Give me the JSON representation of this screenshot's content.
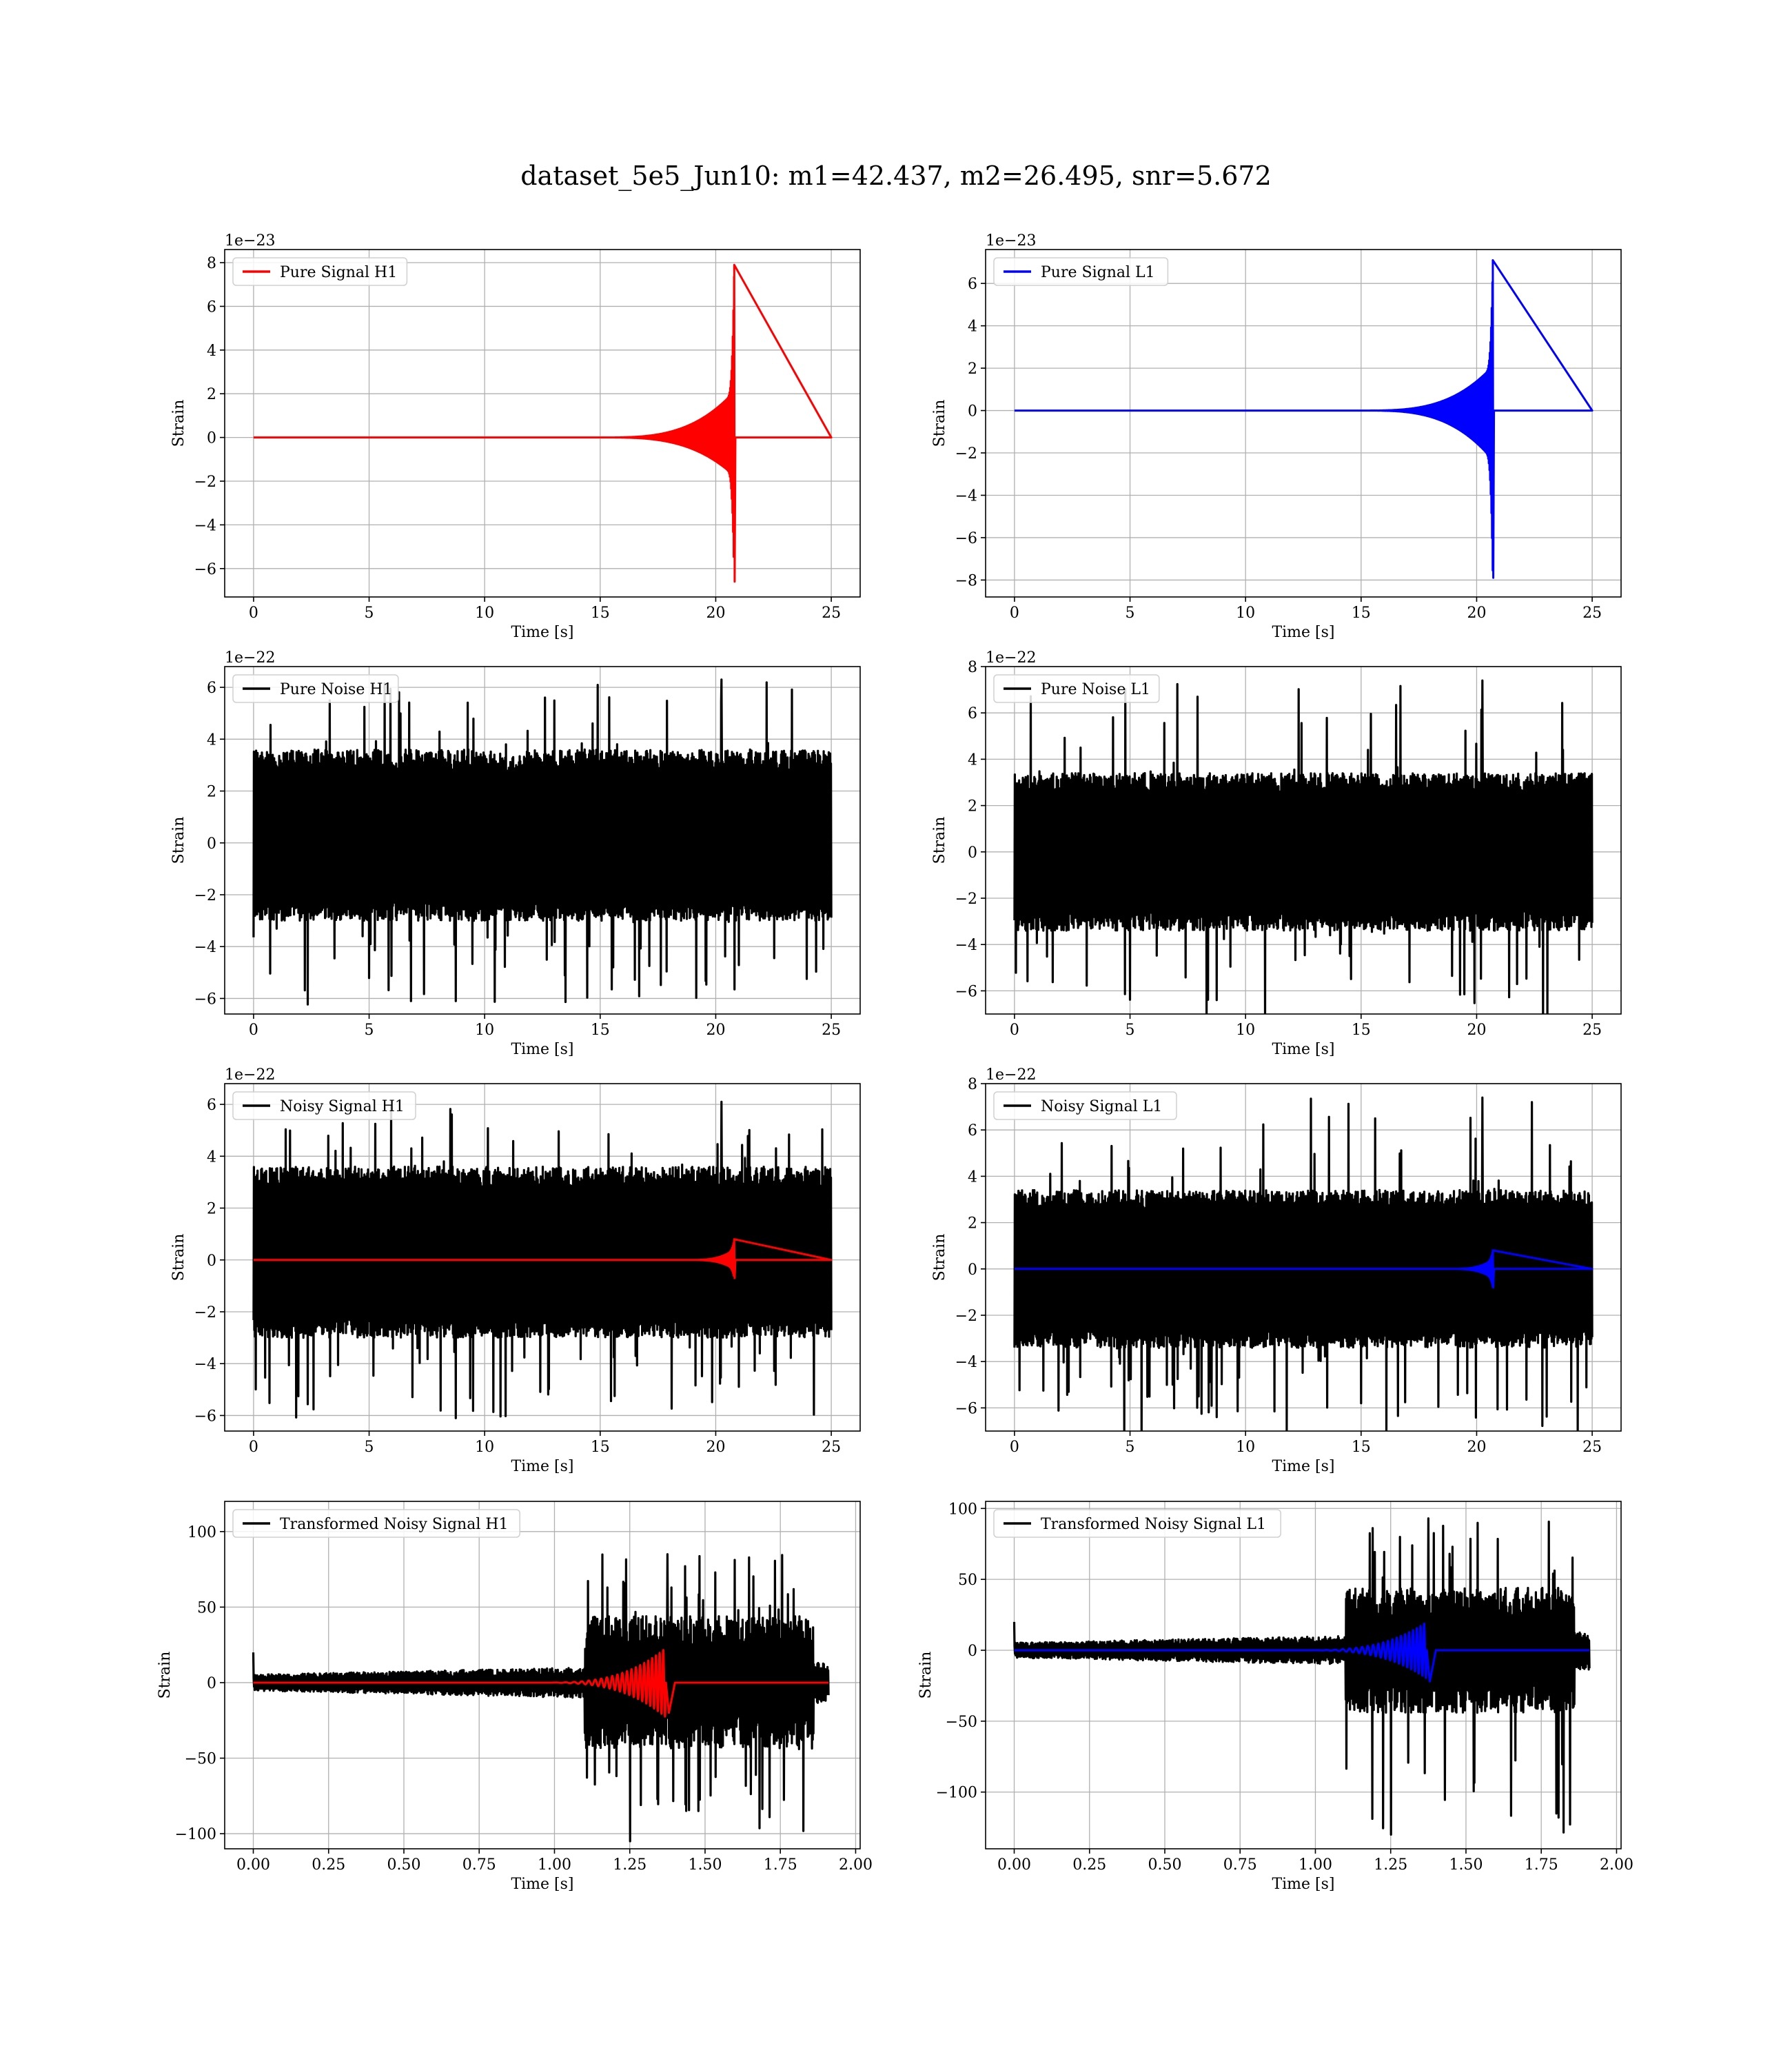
{
  "figure": {
    "title": "dataset_5e5_Jun10: m1=42.437, m2=26.495, snr=5.672"
  },
  "colors": {
    "h1": "#ff0000",
    "l1": "#0000ff",
    "noise": "#000000"
  },
  "chart_data": [
    {
      "type": "line",
      "legend": "Pure Signal H1",
      "legend_position": "upper-left",
      "grid": true,
      "xlabel": "Time [s]",
      "ylabel": "Strain",
      "offset_text": "1e−23",
      "xlim": [
        -1.25,
        26.25
      ],
      "ylim": [
        -7.3,
        8.6
      ],
      "xticks": [
        0,
        5,
        10,
        15,
        20,
        25
      ],
      "xtick_labels": [
        "0",
        "5",
        "10",
        "15",
        "20",
        "25"
      ],
      "yticks": [
        -6,
        -4,
        -2,
        0,
        2,
        4,
        6,
        8
      ],
      "ytick_labels": [
        "−6",
        "−4",
        "−2",
        "0",
        "2",
        "4",
        "6",
        "8"
      ],
      "series": [
        {
          "color": "#ff0000",
          "kind": "chirp",
          "x_range": [
            0,
            25
          ],
          "merger_t": 20.8,
          "onset_t": 15.0,
          "peak_high": 7.9,
          "peak_low": -6.6,
          "plateau": 2.1
        }
      ]
    },
    {
      "type": "line",
      "legend": "Pure Signal L1",
      "legend_position": "upper-left",
      "grid": true,
      "xlabel": "Time [s]",
      "ylabel": "Strain",
      "offset_text": "1e−23",
      "xlim": [
        -1.25,
        26.25
      ],
      "ylim": [
        -8.8,
        7.6
      ],
      "xticks": [
        0,
        5,
        10,
        15,
        20,
        25
      ],
      "xtick_labels": [
        "0",
        "5",
        "10",
        "15",
        "20",
        "25"
      ],
      "yticks": [
        -8,
        -6,
        -4,
        -2,
        0,
        2,
        4,
        6
      ],
      "ytick_labels": [
        "−8",
        "−6",
        "−4",
        "−2",
        "0",
        "2",
        "4",
        "6"
      ],
      "series": [
        {
          "color": "#0000ff",
          "kind": "chirp",
          "x_range": [
            0,
            25
          ],
          "merger_t": 20.7,
          "onset_t": 15.0,
          "peak_high": 7.1,
          "peak_low": -7.9,
          "plateau": 2.1
        }
      ]
    },
    {
      "type": "line",
      "legend": "Pure Noise H1",
      "legend_position": "upper-left",
      "grid": true,
      "xlabel": "Time [s]",
      "ylabel": "Strain",
      "offset_text": "1e−22",
      "xlim": [
        -1.25,
        26.25
      ],
      "ylim": [
        -6.6,
        6.8
      ],
      "xticks": [
        0,
        5,
        10,
        15,
        20,
        25
      ],
      "xtick_labels": [
        "0",
        "5",
        "10",
        "15",
        "20",
        "25"
      ],
      "yticks": [
        -6,
        -4,
        -2,
        0,
        2,
        4,
        6
      ],
      "ytick_labels": [
        "−6",
        "−4",
        "−2",
        "0",
        "2",
        "4",
        "6"
      ],
      "series": [
        {
          "color": "#000000",
          "kind": "noise",
          "x_range": [
            0,
            25
          ],
          "band_high": 3.6,
          "band_low": -3.0,
          "spike_high": 6.3,
          "spike_low": -6.1
        }
      ]
    },
    {
      "type": "line",
      "legend": "Pure Noise L1",
      "legend_position": "upper-left",
      "grid": true,
      "xlabel": "Time [s]",
      "ylabel": "Strain",
      "offset_text": "1e−22",
      "xlim": [
        -1.25,
        26.25
      ],
      "ylim": [
        -7.0,
        8.0
      ],
      "xticks": [
        0,
        5,
        10,
        15,
        20,
        25
      ],
      "xtick_labels": [
        "0",
        "5",
        "10",
        "15",
        "20",
        "25"
      ],
      "yticks": [
        -6,
        -4,
        -2,
        0,
        2,
        4,
        6,
        8
      ],
      "ytick_labels": [
        "−6",
        "−4",
        "−2",
        "0",
        "2",
        "4",
        "6",
        "8"
      ],
      "series": [
        {
          "color": "#000000",
          "kind": "noise",
          "x_range": [
            0,
            25
          ],
          "band_high": 3.4,
          "band_low": -3.4,
          "spike_high": 7.4,
          "spike_low": -6.4
        }
      ]
    },
    {
      "type": "line",
      "legend": "Noisy Signal H1",
      "legend_position": "upper-left",
      "grid": true,
      "xlabel": "Time [s]",
      "ylabel": "Strain",
      "offset_text": "1e−22",
      "xlim": [
        -1.25,
        26.25
      ],
      "ylim": [
        -6.6,
        6.8
      ],
      "xticks": [
        0,
        5,
        10,
        15,
        20,
        25
      ],
      "xtick_labels": [
        "0",
        "5",
        "10",
        "15",
        "20",
        "25"
      ],
      "yticks": [
        -6,
        -4,
        -2,
        0,
        2,
        4,
        6
      ],
      "ytick_labels": [
        "−6",
        "−4",
        "−2",
        "0",
        "2",
        "4",
        "6"
      ],
      "series": [
        {
          "color": "#000000",
          "kind": "noise",
          "x_range": [
            0,
            25
          ],
          "band_high": 3.6,
          "band_low": -3.0,
          "spike_high": 6.1,
          "spike_low": -6.1
        },
        {
          "color": "#ff0000",
          "kind": "chirp",
          "x_range": [
            0,
            25
          ],
          "merger_t": 20.8,
          "onset_t": 18.8,
          "peak_high": 0.8,
          "peak_low": -0.7,
          "plateau": 0.4
        }
      ]
    },
    {
      "type": "line",
      "legend": "Noisy Signal L1",
      "legend_position": "upper-left",
      "grid": true,
      "xlabel": "Time [s]",
      "ylabel": "Strain",
      "offset_text": "1e−22",
      "xlim": [
        -1.25,
        26.25
      ],
      "ylim": [
        -7.0,
        8.0
      ],
      "xticks": [
        0,
        5,
        10,
        15,
        20,
        25
      ],
      "xtick_labels": [
        "0",
        "5",
        "10",
        "15",
        "20",
        "25"
      ],
      "yticks": [
        -6,
        -4,
        -2,
        0,
        2,
        4,
        6,
        8
      ],
      "ytick_labels": [
        "−6",
        "−4",
        "−2",
        "0",
        "2",
        "4",
        "6",
        "8"
      ],
      "series": [
        {
          "color": "#000000",
          "kind": "noise",
          "x_range": [
            0,
            25
          ],
          "band_high": 3.4,
          "band_low": -3.4,
          "spike_high": 7.4,
          "spike_low": -6.4
        },
        {
          "color": "#0000ff",
          "kind": "chirp",
          "x_range": [
            0,
            25
          ],
          "merger_t": 20.7,
          "onset_t": 18.8,
          "peak_high": 0.8,
          "peak_low": -0.8,
          "plateau": 0.4
        }
      ]
    },
    {
      "type": "line",
      "legend": "Transformed Noisy Signal H1",
      "legend_position": "upper-left",
      "grid": true,
      "xlabel": "Time [s]",
      "ylabel": "Strain",
      "offset_text": "",
      "xlim": [
        -0.095,
        2.015
      ],
      "ylim": [
        -110,
        120
      ],
      "xticks": [
        0.0,
        0.25,
        0.5,
        0.75,
        1.0,
        1.25,
        1.5,
        1.75,
        2.0
      ],
      "xtick_labels": [
        "0.00",
        "0.25",
        "0.50",
        "0.75",
        "1.00",
        "1.25",
        "1.50",
        "1.75",
        "2.00"
      ],
      "yticks": [
        -100,
        -50,
        0,
        50,
        100
      ],
      "ytick_labels": [
        "−100",
        "−50",
        "0",
        "50",
        "100"
      ],
      "series": [
        {
          "color": "#000000",
          "kind": "transformed",
          "x_range": [
            0,
            1.91
          ],
          "jump_t": 1.1,
          "early_band": 8,
          "late_band": 40,
          "spike_high": 85,
          "spike_low": -105
        },
        {
          "color": "#ff0000",
          "kind": "chirp_t",
          "x_range": [
            0,
            1.91
          ],
          "merger_t": 1.37,
          "onset_t": 0.95,
          "peak_high": 23,
          "peak_low": -20
        }
      ]
    },
    {
      "type": "line",
      "legend": "Transformed Noisy Signal L1",
      "legend_position": "upper-left",
      "grid": true,
      "xlabel": "Time [s]",
      "ylabel": "Strain",
      "offset_text": "",
      "xlim": [
        -0.095,
        2.015
      ],
      "ylim": [
        -140,
        105
      ],
      "xticks": [
        0.0,
        0.25,
        0.5,
        0.75,
        1.0,
        1.25,
        1.5,
        1.75,
        2.0
      ],
      "xtick_labels": [
        "0.00",
        "0.25",
        "0.50",
        "0.75",
        "1.00",
        "1.25",
        "1.50",
        "1.75",
        "2.00"
      ],
      "yticks": [
        -100,
        -50,
        0,
        50,
        100
      ],
      "ytick_labels": [
        "−100",
        "−50",
        "0",
        "50",
        "100"
      ],
      "series": [
        {
          "color": "#000000",
          "kind": "transformed",
          "x_range": [
            0,
            1.91
          ],
          "jump_t": 1.1,
          "early_band": 8,
          "late_band": 40,
          "spike_high": 93,
          "spike_low": -130
        },
        {
          "color": "#0000ff",
          "kind": "chirp_t",
          "x_range": [
            0,
            1.91
          ],
          "merger_t": 1.37,
          "onset_t": 0.95,
          "peak_high": 20,
          "peak_low": -22
        }
      ]
    }
  ]
}
